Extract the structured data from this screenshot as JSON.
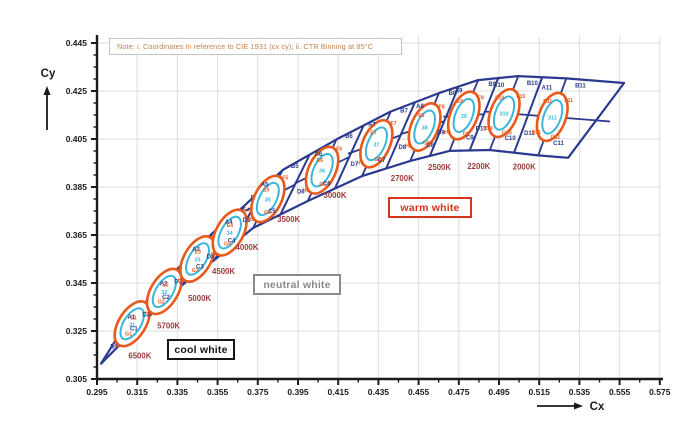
{
  "note": "Note: i. Coordinates in reference to CIE 1931 (cx cy); ii. CTR Binning at 85°C",
  "axes": {
    "x_label": "Cx",
    "y_label": "Cy",
    "x_range": [
      0.295,
      0.575
    ],
    "y_range": [
      0.305,
      0.445
    ],
    "x_ticks": [
      0.295,
      0.315,
      0.335,
      0.355,
      0.375,
      0.395,
      0.415,
      0.435,
      0.455,
      0.475,
      0.495,
      0.515,
      0.535,
      0.555,
      0.575
    ],
    "y_ticks": [
      0.305,
      0.325,
      0.345,
      0.365,
      0.385,
      0.405,
      0.425,
      0.445
    ],
    "x_minor_step": 0.01,
    "y_minor_step": 0.005,
    "grid": true
  },
  "regions": {
    "cool": {
      "label": "cool white",
      "color": "#161616"
    },
    "neutral": {
      "label": "neutral white",
      "color": "#8a8a8a"
    },
    "warm": {
      "label": "warm white",
      "color": "#d8341c"
    }
  },
  "colors": {
    "band_outline": "#2b3a8f",
    "ellipse_5step": "#e8591c",
    "ellipse_3step": "#3ab7d8",
    "corner_label": "#2b3a8f",
    "ring_label": "#e8591c",
    "inner_label": "#3ab7d8",
    "cct_label": "#9e3a3a",
    "grid": "#dcdcdc",
    "axis": "#1a1a1a",
    "note_text": "#c0824f"
  },
  "chart_data": {
    "type": "scatter",
    "subtype": "CIE-1931-chromaticity-CCT-binning",
    "title": "",
    "xlabel": "Cx",
    "ylabel": "Cy",
    "xlim": [
      0.295,
      0.575
    ],
    "ylim": [
      0.305,
      0.445
    ],
    "legend_position": "none",
    "bins": [
      {
        "cct": "6500K",
        "center": {
          "cx": 0.3125,
          "cy": 0.328
        },
        "labels": {
          "a": "A1",
          "b": "B1",
          "c": "C1",
          "d": "D1",
          "e": "E1",
          "f": "F1",
          "g": "G1",
          "h": "H1",
          "inner": "31"
        }
      },
      {
        "cct": "5700K",
        "center": {
          "cx": 0.3285,
          "cy": 0.3415
        },
        "labels": {
          "a": "A2",
          "b": "B2",
          "c": "C2",
          "d": "D2",
          "e": "E2",
          "f": "F2",
          "g": "G2",
          "h": "H2",
          "inner": "32"
        }
      },
      {
        "cct": "5000K",
        "center": {
          "cx": 0.345,
          "cy": 0.355
        },
        "labels": {
          "a": "A3",
          "b": "B3",
          "c": "C3",
          "d": "D3",
          "e": "E3",
          "f": "F3",
          "g": "G3",
          "h": "H3",
          "inner": "33"
        }
      },
      {
        "cct": "4500K",
        "center": {
          "cx": 0.361,
          "cy": 0.366
        },
        "labels": {
          "a": "A4",
          "b": "B4",
          "c": "C4",
          "d": "D4",
          "e": "E4",
          "f": "F4",
          "g": "G4",
          "h": "H4",
          "inner": "34"
        }
      },
      {
        "cct": "4000K",
        "center": {
          "cx": 0.38,
          "cy": 0.38
        },
        "labels": {
          "a": "A5",
          "b": "B5",
          "c": "C5",
          "d": "D5",
          "e": "E5",
          "f": "F5",
          "g": "G5",
          "h": "H5",
          "inner": "35"
        }
      },
      {
        "cct": "3500K",
        "center": {
          "cx": 0.407,
          "cy": 0.392
        },
        "labels": {
          "a": "A6",
          "b": "B6",
          "c": "C6",
          "d": "D6",
          "e": "E6",
          "f": "F6",
          "g": "G6",
          "h": "H6",
          "inner": "36"
        }
      },
      {
        "cct": "3000K",
        "center": {
          "cx": 0.434,
          "cy": 0.403
        },
        "labels": {
          "a": "A7",
          "b": "B7",
          "c": "C7",
          "d": "D7",
          "e": "E7",
          "f": "F7",
          "g": "G7",
          "h": "H7",
          "inner": "37"
        }
      },
      {
        "cct": "2700K",
        "center": {
          "cx": 0.458,
          "cy": 0.41
        },
        "labels": {
          "a": "A8",
          "b": "B8",
          "c": "C8",
          "d": "D8",
          "e": "E8",
          "f": "F8",
          "g": "G8",
          "h": "H8",
          "inner": "38"
        }
      },
      {
        "cct": "2500K",
        "center": {
          "cx": 0.4775,
          "cy": 0.4148
        },
        "labels": {
          "a": "A9",
          "b": "B9",
          "c": "C9",
          "d": "D9",
          "e": "E9",
          "f": "F9",
          "g": "G9",
          "h": "H9",
          "inner": "39"
        }
      },
      {
        "cct": "2200K",
        "center": {
          "cx": 0.4975,
          "cy": 0.4158
        },
        "labels": {
          "a": "A10",
          "b": "B10",
          "c": "C10",
          "d": "D10",
          "e": "E10",
          "f": "F10",
          "g": "G10",
          "h": "H10",
          "inner": "310"
        }
      },
      {
        "cct": "2000K",
        "center": {
          "cx": 0.5215,
          "cy": 0.4142
        },
        "labels": {
          "a": "A11",
          "b": "B11",
          "c": "C11",
          "d": "D11",
          "e": "E11",
          "f": "F11",
          "g": "G11",
          "h": "H11",
          "inner": "311"
        }
      }
    ]
  }
}
